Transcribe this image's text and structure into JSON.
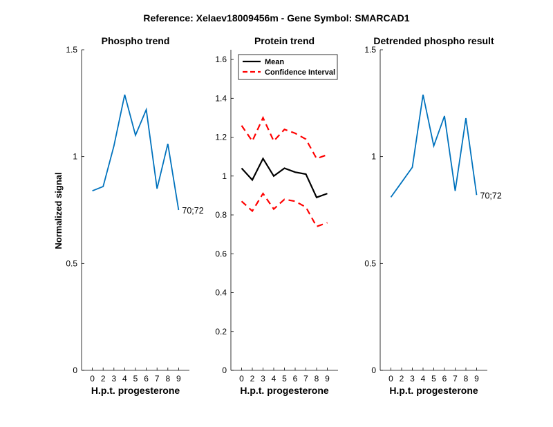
{
  "suptitle": "Reference:  Xelaev18009456m - Gene Symbol:  SMARCAD1",
  "shared_ylabel": "Normalized signal",
  "chart_data": [
    {
      "type": "line",
      "title": "Phospho trend",
      "xlabel": "H.p.t. progesterone",
      "ylabel": "Normalized signal",
      "categories": [
        "0",
        "2",
        "3",
        "4",
        "5",
        "6",
        "7",
        "8",
        "9"
      ],
      "ylim": [
        0,
        1.5
      ],
      "yticks": [
        "0",
        "0.5",
        "1",
        "1.5"
      ],
      "ytick_values": [
        0,
        0.5,
        1,
        1.5
      ],
      "grid": false,
      "series": [
        {
          "values": [
            0.84,
            0.86,
            1.05,
            1.29,
            1.1,
            1.22,
            0.85,
            1.06,
            0.75
          ],
          "color": "#0072BD",
          "dash": "solid"
        }
      ],
      "annotation": "70;72"
    },
    {
      "type": "line",
      "title": "Protein trend",
      "xlabel": "H.p.t. progesterone",
      "categories": [
        "0",
        "2",
        "3",
        "4",
        "5",
        "6",
        "7",
        "8",
        "9"
      ],
      "ylim": [
        0,
        1.65
      ],
      "yticks": [
        "0",
        "0.2",
        "0.4",
        "0.6",
        "0.8",
        "1",
        "1.2",
        "1.4",
        "1.6"
      ],
      "ytick_values": [
        0,
        0.2,
        0.4,
        0.6,
        0.8,
        1,
        1.2,
        1.4,
        1.6
      ],
      "grid": false,
      "legend_position": "top-left",
      "series": [
        {
          "name": "Mean",
          "values": [
            1.04,
            0.98,
            1.09,
            1.0,
            1.04,
            1.02,
            1.01,
            0.89,
            0.91
          ],
          "color": "#000000",
          "dash": "solid"
        },
        {
          "name": "Confidence Interval",
          "values": [
            1.26,
            1.18,
            1.3,
            1.18,
            1.24,
            1.22,
            1.19,
            1.09,
            1.11
          ],
          "color": "#FF0000",
          "dash": "dashed"
        },
        {
          "values": [
            0.87,
            0.82,
            0.91,
            0.83,
            0.88,
            0.87,
            0.84,
            0.74,
            0.76
          ],
          "color": "#FF0000",
          "dash": "dashed"
        }
      ]
    },
    {
      "type": "line",
      "title": "Detrended phospho result",
      "xlabel": "H.p.t. progesterone",
      "categories": [
        "0",
        "2",
        "3",
        "4",
        "5",
        "6",
        "7",
        "8",
        "9"
      ],
      "ylim": [
        0,
        1.5
      ],
      "yticks": [
        "0",
        "0.5",
        "1",
        "1.5"
      ],
      "ytick_values": [
        0,
        0.5,
        1,
        1.5
      ],
      "grid": false,
      "series": [
        {
          "values": [
            0.81,
            0.88,
            0.95,
            1.29,
            1.05,
            1.19,
            0.84,
            1.18,
            0.82
          ],
          "color": "#0072BD",
          "dash": "solid"
        }
      ],
      "annotation": "70;72"
    }
  ]
}
